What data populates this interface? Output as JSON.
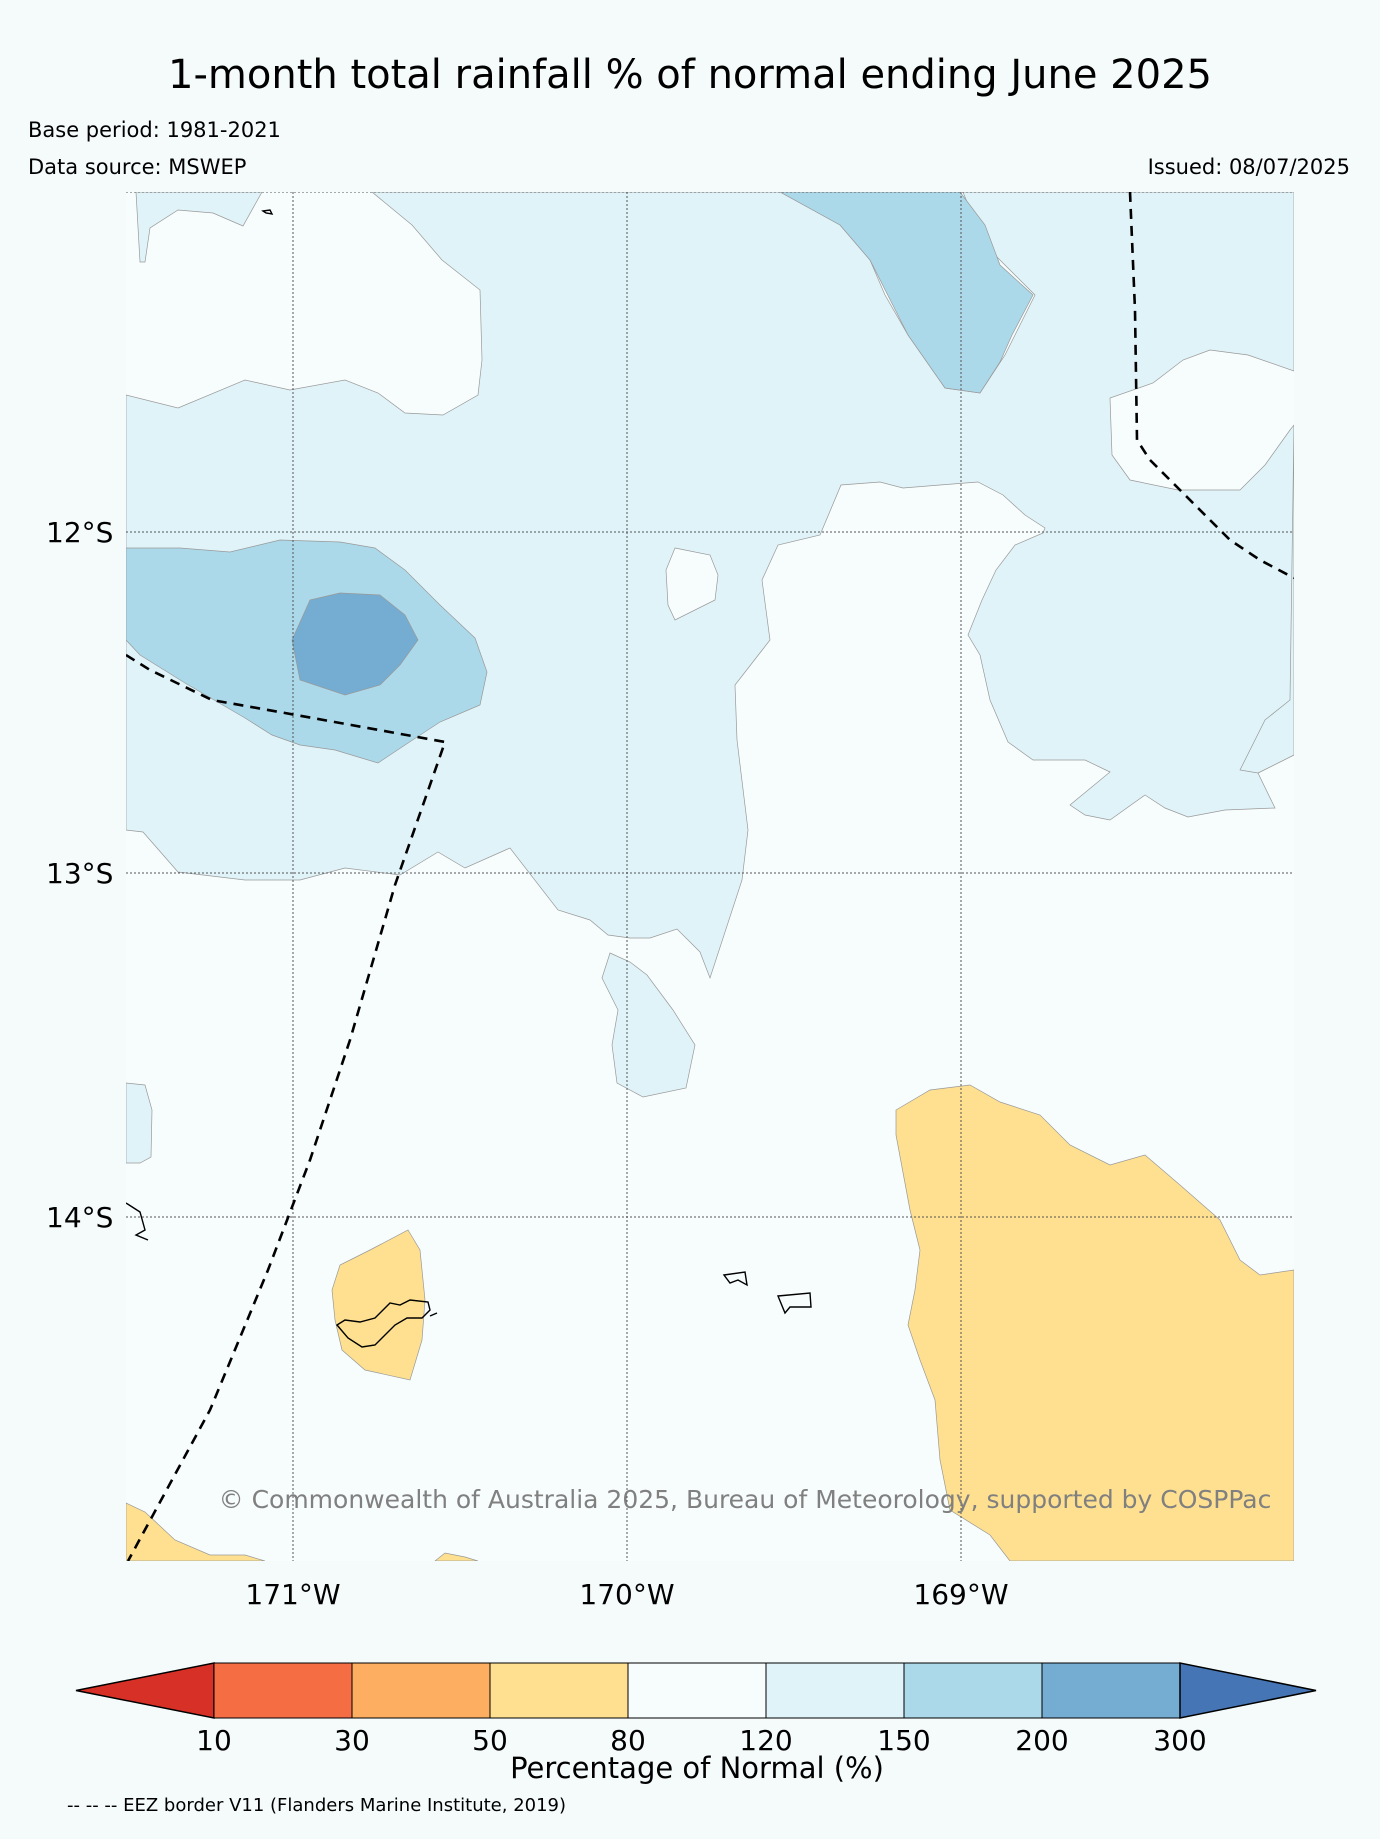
{
  "header": {
    "title": "1-month total rainfall % of normal ending June 2025",
    "base_period": "Base period: 1981-2021",
    "data_source": "Data source: MSWEP",
    "issued": "Issued: 08/07/2025"
  },
  "map": {
    "lat_labels": [
      "12°S",
      "13°S",
      "14°S"
    ],
    "lon_labels": [
      "171°W",
      "170°W",
      "169°W"
    ],
    "lat_range": [
      -15.0,
      -11.0
    ],
    "lon_range": [
      -171.5,
      -168.0
    ],
    "grid": true,
    "copyright": "© Commonwealth of Australia 2025, Bureau of Meteorology, supported by COSPPac",
    "border_note": "-- -- -- EEZ border V11 (Flanders Marine Institute, 2019)"
  },
  "legend": {
    "label": "Percentage of Normal (%)",
    "ticks": [
      "10",
      "30",
      "50",
      "80",
      "120",
      "150",
      "200",
      "300"
    ],
    "colors": [
      "#d73027",
      "#f46d43",
      "#fdae61",
      "#fee090",
      "#f7fcfd",
      "#e0f3f8",
      "#abd9e9",
      "#74add1",
      "#4575b4"
    ]
  }
}
